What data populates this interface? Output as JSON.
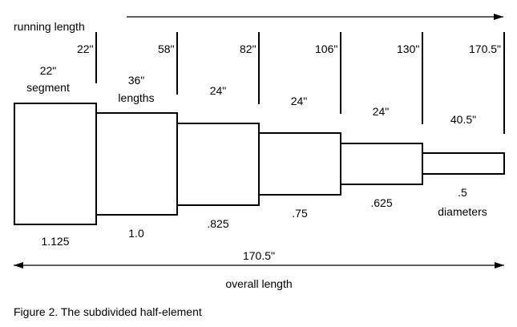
{
  "running_length": {
    "label": "running length",
    "marks": [
      "22\"",
      "58\"",
      "82\"",
      "106\"",
      "130\"",
      "170.5\""
    ]
  },
  "segments": [
    {
      "length_label_lines": [
        "22\"",
        "segment"
      ],
      "diameter_label_lines": [
        "1.125"
      ]
    },
    {
      "length_label_lines": [
        "36\"",
        "lengths"
      ],
      "diameter_label_lines": [
        "1.0"
      ]
    },
    {
      "length_label_lines": [
        "24\""
      ],
      "diameter_label_lines": [
        ".825"
      ]
    },
    {
      "length_label_lines": [
        "24\""
      ],
      "diameter_label_lines": [
        ".75"
      ]
    },
    {
      "length_label_lines": [
        "24\""
      ],
      "diameter_label_lines": [
        ".625"
      ]
    },
    {
      "length_label_lines": [
        "40.5\""
      ],
      "diameter_label_lines": [
        ".5",
        "diameters"
      ]
    }
  ],
  "overall": {
    "value": "170.5\"",
    "label": "overall length"
  },
  "caption": "Figure 2.  The subdivided half-element"
}
